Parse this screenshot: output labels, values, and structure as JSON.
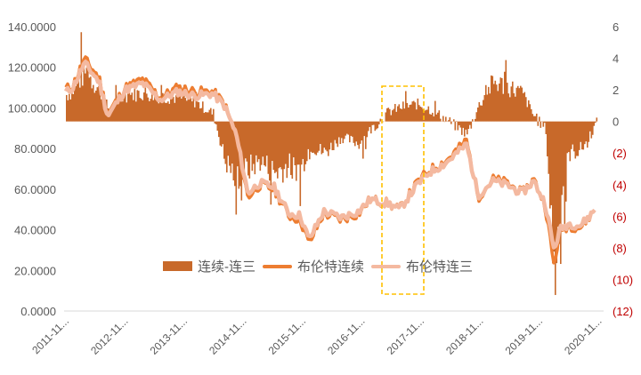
{
  "chart_data": {
    "type": "bar+line",
    "title": "",
    "xlabel": "",
    "ylabel_left": "",
    "ylabel_right": "",
    "x_tick_labels": [
      "2011-11...",
      "2012-11...",
      "2013-11...",
      "2014-11...",
      "2015-11...",
      "2016-11...",
      "2017-11...",
      "2018-11...",
      "2019-11...",
      "2020-11..."
    ],
    "left_axis": {
      "ylim": [
        0,
        140
      ],
      "ticks": [
        "0.0000",
        "20.0000",
        "40.0000",
        "60.0000",
        "80.0000",
        "100.0000",
        "120.0000",
        "140.0000"
      ]
    },
    "right_axis": {
      "ylim": [
        -12,
        6
      ],
      "ticks": [
        "(12)",
        "(10)",
        "(8)",
        "(6)",
        "(4)",
        "(2)",
        "0",
        "2",
        "4",
        "6"
      ]
    },
    "grid": false,
    "legend_position": "inside-bottom-center",
    "legend": [
      "连续-连三",
      "布伦特连续",
      "布伦特连三"
    ],
    "x_time": [
      2011.85,
      2012.0,
      2012.2,
      2012.45,
      2012.6,
      2012.9,
      2013.2,
      2013.5,
      2013.8,
      2014.1,
      2014.4,
      2014.6,
      2014.8,
      2015.0,
      2015.2,
      2015.45,
      2015.7,
      2015.9,
      2016.05,
      2016.3,
      2016.6,
      2016.9,
      2017.1,
      2017.4,
      2017.6,
      2017.9,
      2018.1,
      2018.4,
      2018.75,
      2018.95,
      2019.2,
      2019.45,
      2019.7,
      2019.9,
      2020.1,
      2020.25,
      2020.35,
      2020.5,
      2020.7,
      2020.9,
      2021.05
    ],
    "series": [
      {
        "name": "连续-连三",
        "type": "bar",
        "axis": "right",
        "color": "#c8692a",
        "values": [
          1.6,
          2.0,
          3.2,
          2.0,
          0.8,
          1.7,
          1.8,
          1.6,
          1.5,
          1.2,
          0.5,
          -2.5,
          -3.5,
          -3.0,
          -2.5,
          -3.2,
          -2.8,
          -3.0,
          -1.5,
          -2.0,
          -1.0,
          -1.4,
          -0.5,
          0.6,
          0.9,
          1.1,
          0.8,
          0.1,
          -0.8,
          1.0,
          2.5,
          2.2,
          1.8,
          0.3,
          -0.5,
          -10.0,
          -5.0,
          -2.0,
          -1.8,
          -0.6,
          0.5
        ]
      },
      {
        "name": "布伦特连续",
        "type": "line",
        "axis": "left",
        "color": "#ed7d31",
        "values": [
          109,
          111,
          124,
          115,
          97,
          110,
          114,
          105,
          110,
          108,
          108,
          102,
          86,
          56,
          62,
          60,
          47,
          45,
          33,
          48,
          45,
          48,
          55,
          53,
          50,
          63,
          69,
          74,
          84,
          56,
          65,
          63,
          58,
          65,
          52,
          22,
          40,
          42,
          41,
          48,
          55
        ]
      },
      {
        "name": "布伦特连三",
        "type": "line",
        "axis": "left",
        "color": "#f4b9a0",
        "values": [
          107,
          110,
          122,
          113,
          96,
          109,
          112,
          104,
          108,
          106,
          107,
          101,
          87,
          58,
          63,
          61,
          48,
          47,
          35,
          49,
          46,
          49,
          55,
          53,
          50,
          62,
          68,
          73,
          82,
          57,
          64,
          62,
          58,
          64,
          53,
          30,
          40,
          43,
          42,
          48,
          55
        ]
      }
    ],
    "annotations": [
      {
        "type": "dashed-rect",
        "color": "#ffc000",
        "x_range": [
          "2017-01",
          "2017-08"
        ],
        "description": "highlight box around 2017 rollover from backwardation"
      }
    ]
  },
  "legend": {
    "items": [
      {
        "label": "连续-连三",
        "color": "#c8692a"
      },
      {
        "label": "布伦特连续",
        "color": "#ed7d31"
      },
      {
        "label": "布伦特连三",
        "color": "#f4b9a0"
      }
    ]
  }
}
